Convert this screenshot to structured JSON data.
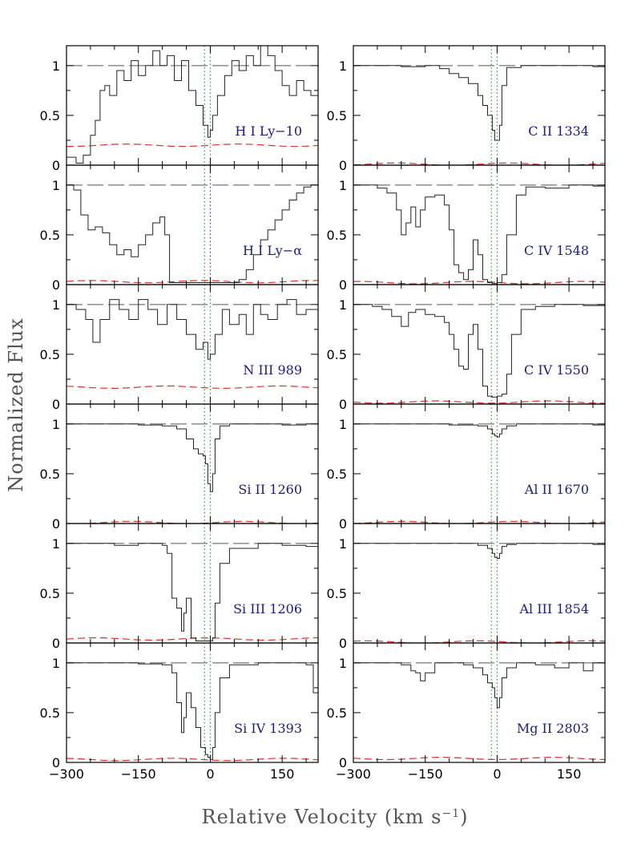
{
  "chart_data": {
    "type": "line",
    "ylabel": "Normalized Flux",
    "xlabel_main": "Relative Velocity (km s",
    "xlabel_sup": "−1",
    "xlabel_close": ")",
    "xlim": [
      -300,
      225
    ],
    "ylim": [
      0,
      1.2
    ],
    "x_ticks": [
      -300,
      -150,
      0,
      150
    ],
    "x_tick_labels": [
      "−300",
      "−150",
      "0",
      "150"
    ],
    "y_ticks": [
      0,
      0.5,
      1
    ],
    "y_tick_labels": [
      "0",
      "0.5",
      "1"
    ],
    "colors": {
      "flux": "#222222",
      "error": "#e03030",
      "continuum": "#555555",
      "green_marker": "#2f9a3a",
      "blue_marker": "#3a3ad0",
      "label": "#1a1a8c"
    },
    "panels": [
      {
        "label": "H I Ly−10",
        "col": 0,
        "row": 0,
        "error_level": 0.2,
        "flux_x": [
          -300,
          -280,
          -265,
          -250,
          -240,
          -230,
          -220,
          -210,
          -195,
          -180,
          -165,
          -150,
          -135,
          -120,
          -105,
          -90,
          -75,
          -60,
          -45,
          -30,
          -15,
          -5,
          0,
          5,
          15,
          30,
          45,
          60,
          75,
          90,
          105,
          120,
          135,
          150,
          165,
          180,
          195,
          210,
          225
        ],
        "flux_y": [
          0.08,
          0.02,
          0.1,
          0.3,
          0.45,
          0.75,
          0.8,
          0.7,
          0.95,
          0.85,
          1.05,
          0.9,
          1.0,
          1.15,
          1.0,
          1.1,
          0.85,
          1.05,
          0.75,
          0.6,
          0.4,
          0.28,
          0.35,
          0.5,
          0.7,
          0.9,
          1.05,
          0.95,
          1.1,
          1.0,
          1.2,
          1.1,
          0.95,
          0.8,
          0.7,
          0.85,
          0.75,
          0.7,
          0.8
        ]
      },
      {
        "label": "C II 1334",
        "col": 1,
        "row": 0,
        "error_level": 0.01,
        "flux_x": [
          -300,
          -250,
          -200,
          -150,
          -120,
          -100,
          -80,
          -60,
          -40,
          -30,
          -20,
          -10,
          -5,
          0,
          5,
          10,
          20,
          50,
          100,
          150,
          200,
          225
        ],
        "flux_y": [
          1.0,
          1.0,
          0.99,
          1.0,
          0.97,
          0.92,
          0.88,
          0.82,
          0.7,
          0.6,
          0.5,
          0.35,
          0.25,
          0.25,
          0.4,
          0.8,
          0.98,
          1.0,
          1.0,
          1.0,
          0.99,
          0.95
        ]
      },
      {
        "label": "H I Ly−α",
        "col": 0,
        "row": 1,
        "error_level": 0.03,
        "flux_x": [
          -300,
          -285,
          -270,
          -255,
          -240,
          -225,
          -210,
          -195,
          -180,
          -165,
          -150,
          -135,
          -120,
          -105,
          -95,
          -85,
          -60,
          -30,
          0,
          30,
          60,
          75,
          90,
          105,
          120,
          135,
          150,
          165,
          180,
          195,
          210,
          225
        ],
        "flux_y": [
          1.0,
          0.95,
          0.7,
          0.55,
          0.58,
          0.52,
          0.4,
          0.3,
          0.35,
          0.28,
          0.4,
          0.5,
          0.62,
          0.68,
          0.5,
          0.02,
          0.02,
          0.02,
          0.02,
          0.02,
          0.05,
          0.15,
          0.3,
          0.45,
          0.55,
          0.65,
          0.75,
          0.85,
          0.92,
          0.98,
          1.0,
          1.05
        ]
      },
      {
        "label": "C IV 1548",
        "col": 1,
        "row": 1,
        "error_level": 0.02,
        "flux_x": [
          -300,
          -250,
          -230,
          -210,
          -200,
          -190,
          -180,
          -170,
          -160,
          -150,
          -130,
          -110,
          -100,
          -90,
          -80,
          -70,
          -60,
          -50,
          -40,
          -30,
          -20,
          -10,
          0,
          10,
          20,
          40,
          60,
          100,
          150,
          200,
          225
        ],
        "flux_y": [
          1.0,
          0.97,
          0.92,
          0.75,
          0.5,
          0.62,
          0.78,
          0.58,
          0.75,
          0.88,
          0.9,
          0.8,
          0.55,
          0.2,
          0.12,
          0.05,
          0.15,
          0.45,
          0.3,
          0.05,
          0.02,
          0.01,
          0.02,
          0.1,
          0.5,
          0.9,
          0.98,
          0.97,
          1.0,
          0.99,
          1.0
        ]
      },
      {
        "label": "N III 989",
        "col": 0,
        "row": 2,
        "error_level": 0.17,
        "flux_x": [
          -300,
          -280,
          -260,
          -245,
          -230,
          -210,
          -190,
          -170,
          -150,
          -130,
          -110,
          -90,
          -70,
          -50,
          -30,
          -15,
          -5,
          0,
          10,
          25,
          40,
          60,
          75,
          90,
          105,
          120,
          140,
          160,
          180,
          200,
          225
        ],
        "flux_y": [
          1.0,
          0.95,
          0.85,
          0.62,
          0.85,
          1.05,
          0.95,
          0.85,
          1.05,
          0.95,
          0.8,
          1.0,
          0.85,
          0.7,
          0.55,
          0.62,
          0.45,
          0.5,
          0.7,
          0.95,
          0.8,
          0.9,
          0.7,
          1.0,
          0.9,
          0.85,
          1.0,
          1.05,
          0.9,
          0.95,
          1.0
        ]
      },
      {
        "label": "C IV 1550",
        "col": 1,
        "row": 2,
        "error_level": 0.02,
        "flux_x": [
          -300,
          -260,
          -240,
          -220,
          -200,
          -185,
          -170,
          -150,
          -130,
          -110,
          -100,
          -90,
          -80,
          -70,
          -60,
          -50,
          -40,
          -30,
          -20,
          -10,
          0,
          10,
          20,
          30,
          50,
          80,
          120,
          180,
          225
        ],
        "flux_y": [
          1.0,
          0.98,
          0.95,
          0.88,
          0.78,
          0.92,
          0.95,
          0.9,
          0.88,
          0.82,
          0.7,
          0.55,
          0.38,
          0.35,
          0.7,
          0.8,
          0.55,
          0.18,
          0.08,
          0.07,
          0.08,
          0.1,
          0.3,
          0.7,
          0.95,
          0.98,
          1.0,
          0.99,
          1.0
        ]
      },
      {
        "label": "Si II 1260",
        "col": 0,
        "row": 3,
        "error_level": 0.01,
        "flux_x": [
          -300,
          -250,
          -200,
          -150,
          -100,
          -70,
          -50,
          -35,
          -25,
          -15,
          -10,
          -5,
          0,
          5,
          10,
          20,
          40,
          100,
          150,
          200,
          225
        ],
        "flux_y": [
          1.0,
          1.0,
          1.0,
          0.99,
          0.98,
          0.95,
          0.85,
          0.75,
          0.7,
          0.68,
          0.6,
          0.4,
          0.32,
          0.5,
          0.85,
          0.98,
          1.0,
          1.0,
          0.99,
          1.0,
          1.0
        ]
      },
      {
        "label": "Al II 1670",
        "col": 1,
        "row": 3,
        "error_level": 0.01,
        "flux_x": [
          -300,
          -200,
          -100,
          -40,
          -20,
          -10,
          -5,
          0,
          5,
          10,
          20,
          40,
          100,
          200,
          225
        ],
        "flux_y": [
          1.0,
          1.0,
          0.99,
          0.98,
          0.95,
          0.9,
          0.88,
          0.87,
          0.9,
          0.95,
          0.98,
          1.0,
          1.0,
          0.99,
          1.0
        ]
      },
      {
        "label": "Si III 1206",
        "col": 0,
        "row": 4,
        "error_level": 0.04,
        "flux_x": [
          -300,
          -250,
          -200,
          -150,
          -110,
          -100,
          -90,
          -80,
          -70,
          -60,
          -55,
          -50,
          -40,
          -30,
          -20,
          -10,
          0,
          5,
          10,
          20,
          40,
          100,
          150,
          200,
          225
        ],
        "flux_y": [
          1.0,
          1.0,
          0.98,
          1.0,
          1.0,
          0.98,
          0.9,
          0.45,
          0.35,
          0.12,
          0.3,
          0.45,
          0.05,
          0.02,
          0.02,
          0.02,
          0.02,
          0.05,
          0.4,
          0.8,
          0.95,
          1.0,
          0.98,
          0.97,
          0.98
        ]
      },
      {
        "label": "Al III 1854",
        "col": 1,
        "row": 4,
        "error_level": 0.01,
        "flux_x": [
          -300,
          -200,
          -100,
          -40,
          -20,
          -10,
          -5,
          0,
          5,
          10,
          20,
          40,
          100,
          200,
          225
        ],
        "flux_y": [
          1.0,
          1.0,
          1.0,
          0.98,
          0.95,
          0.9,
          0.86,
          0.85,
          0.9,
          0.97,
          0.99,
          1.0,
          1.0,
          0.99,
          1.0
        ]
      },
      {
        "label": "Si IV 1393",
        "col": 0,
        "row": 5,
        "error_level": 0.03,
        "flux_x": [
          -300,
          -250,
          -200,
          -150,
          -100,
          -80,
          -70,
          -60,
          -55,
          -50,
          -40,
          -30,
          -20,
          -10,
          -5,
          0,
          5,
          10,
          20,
          40,
          100,
          150,
          200,
          215,
          225
        ],
        "flux_y": [
          1.0,
          1.0,
          1.0,
          0.99,
          0.98,
          0.9,
          0.6,
          0.3,
          0.45,
          0.7,
          0.55,
          0.35,
          0.15,
          0.08,
          0.05,
          0.03,
          0.15,
          0.5,
          0.85,
          0.98,
          1.0,
          1.0,
          0.98,
          0.7,
          0.95
        ]
      },
      {
        "label": "Mg II 2803",
        "col": 1,
        "row": 5,
        "error_level": 0.04,
        "flux_x": [
          -300,
          -250,
          -200,
          -180,
          -170,
          -160,
          -150,
          -130,
          -100,
          -70,
          -50,
          -30,
          -20,
          -10,
          -5,
          0,
          5,
          10,
          20,
          40,
          80,
          120,
          150,
          180,
          200,
          225
        ],
        "flux_y": [
          1.0,
          1.0,
          0.98,
          0.92,
          0.9,
          0.82,
          0.9,
          1.0,
          1.0,
          0.98,
          0.95,
          0.88,
          0.8,
          0.75,
          0.65,
          0.55,
          0.65,
          0.85,
          0.95,
          1.0,
          0.98,
          0.95,
          1.0,
          0.92,
          1.0,
          0.98
        ]
      }
    ]
  }
}
